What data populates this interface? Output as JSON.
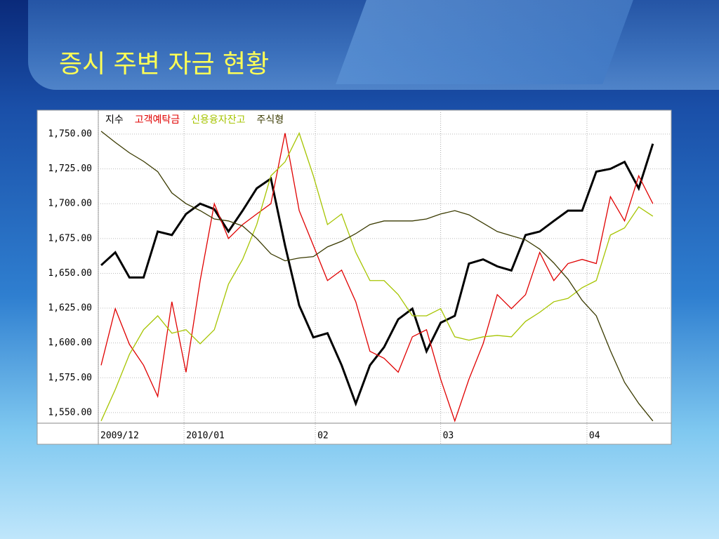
{
  "title": "증시 주변 자금 현황",
  "chart_data": {
    "type": "line",
    "x": [
      0,
      1,
      2,
      3,
      4,
      5,
      6,
      7,
      8,
      9,
      10,
      11,
      12,
      13,
      14,
      15,
      16,
      17,
      18,
      19,
      20,
      21,
      22,
      23,
      24,
      25,
      26,
      27,
      28,
      29,
      30,
      31,
      32,
      33,
      34,
      35,
      36,
      37,
      38,
      39
    ],
    "xlim": [
      -0.2,
      40.25
    ],
    "xticks": [
      {
        "value": -0.2,
        "label": "2009/12"
      },
      {
        "value": 5.86,
        "label": "2010/01"
      },
      {
        "value": 15.14,
        "label": "02"
      },
      {
        "value": 24.0,
        "label": "03"
      },
      {
        "value": 34.34,
        "label": "04"
      }
    ],
    "ylim": [
      1542.4,
      1765.6
    ],
    "yticks": [
      {
        "value": 1550,
        "label": "1,550.00"
      },
      {
        "value": 1575,
        "label": "1,575.00"
      },
      {
        "value": 1600,
        "label": "1,600.00"
      },
      {
        "value": 1625,
        "label": "1,625.00"
      },
      {
        "value": 1650,
        "label": "1,650.00"
      },
      {
        "value": 1675,
        "label": "1,675.00"
      },
      {
        "value": 1700,
        "label": "1,700.00"
      },
      {
        "value": 1725,
        "label": "1,725.00"
      },
      {
        "value": 1750,
        "label": "1,750.00"
      }
    ],
    "grid": true,
    "series": [
      {
        "name": "지수",
        "color": "#000000",
        "values": [
          1655.8,
          1665,
          1647,
          1647,
          1680,
          1677.5,
          1692.6,
          1700,
          1696,
          1680,
          1695,
          1711,
          1718,
          1670,
          1627,
          1604,
          1607,
          1584,
          1556.5,
          1584,
          1597,
          1617,
          1624.6,
          1594,
          1614.5,
          1619.5,
          1657,
          1660,
          1655,
          1652,
          1677.5,
          1680,
          1687.6,
          1695,
          1695,
          1723,
          1725,
          1730,
          1711,
          1743
        ]
      },
      {
        "name": "고객예탁금",
        "color": "#e00000",
        "values": [
          1584,
          1624.6,
          1599,
          1584,
          1561.6,
          1629.6,
          1579,
          1644.8,
          1700,
          1675,
          1685,
          1692.6,
          1700,
          1750.6,
          1695,
          1670,
          1644.8,
          1652.3,
          1629.6,
          1594,
          1589,
          1579,
          1604.4,
          1609.5,
          1574,
          1544,
          1574,
          1599.4,
          1634.7,
          1624.6,
          1634.7,
          1665,
          1644.8,
          1657,
          1660,
          1657,
          1705,
          1687.6,
          1720,
          1700
        ]
      },
      {
        "name": "신용융자잔고",
        "color": "#a6c400",
        "values": [
          1544,
          1566.6,
          1591.8,
          1609.5,
          1619.5,
          1607,
          1609.5,
          1599.4,
          1609.5,
          1642.2,
          1660,
          1685,
          1720,
          1730,
          1750.6,
          1720,
          1685,
          1692.6,
          1665,
          1644.8,
          1644.8,
          1634.7,
          1619.5,
          1619.5,
          1624.6,
          1604.4,
          1602,
          1604.4,
          1605.4,
          1604.4,
          1615.5,
          1622,
          1629.6,
          1632,
          1639.7,
          1644.8,
          1677.5,
          1682.6,
          1697.7,
          1691
        ]
      },
      {
        "name": "주식형",
        "color": "#3a3a00",
        "values": [
          1752,
          1744,
          1736.5,
          1730.4,
          1723,
          1707.7,
          1700,
          1695,
          1689,
          1687.6,
          1684,
          1675,
          1664,
          1659,
          1661,
          1662,
          1669,
          1673,
          1678.5,
          1685,
          1687.6,
          1687.6,
          1687.6,
          1689,
          1692.6,
          1695,
          1692,
          1686,
          1680,
          1677,
          1674,
          1667.4,
          1657.4,
          1645.8,
          1630.6,
          1619.5,
          1594.4,
          1571.7,
          1556.6,
          1544
        ]
      }
    ]
  }
}
